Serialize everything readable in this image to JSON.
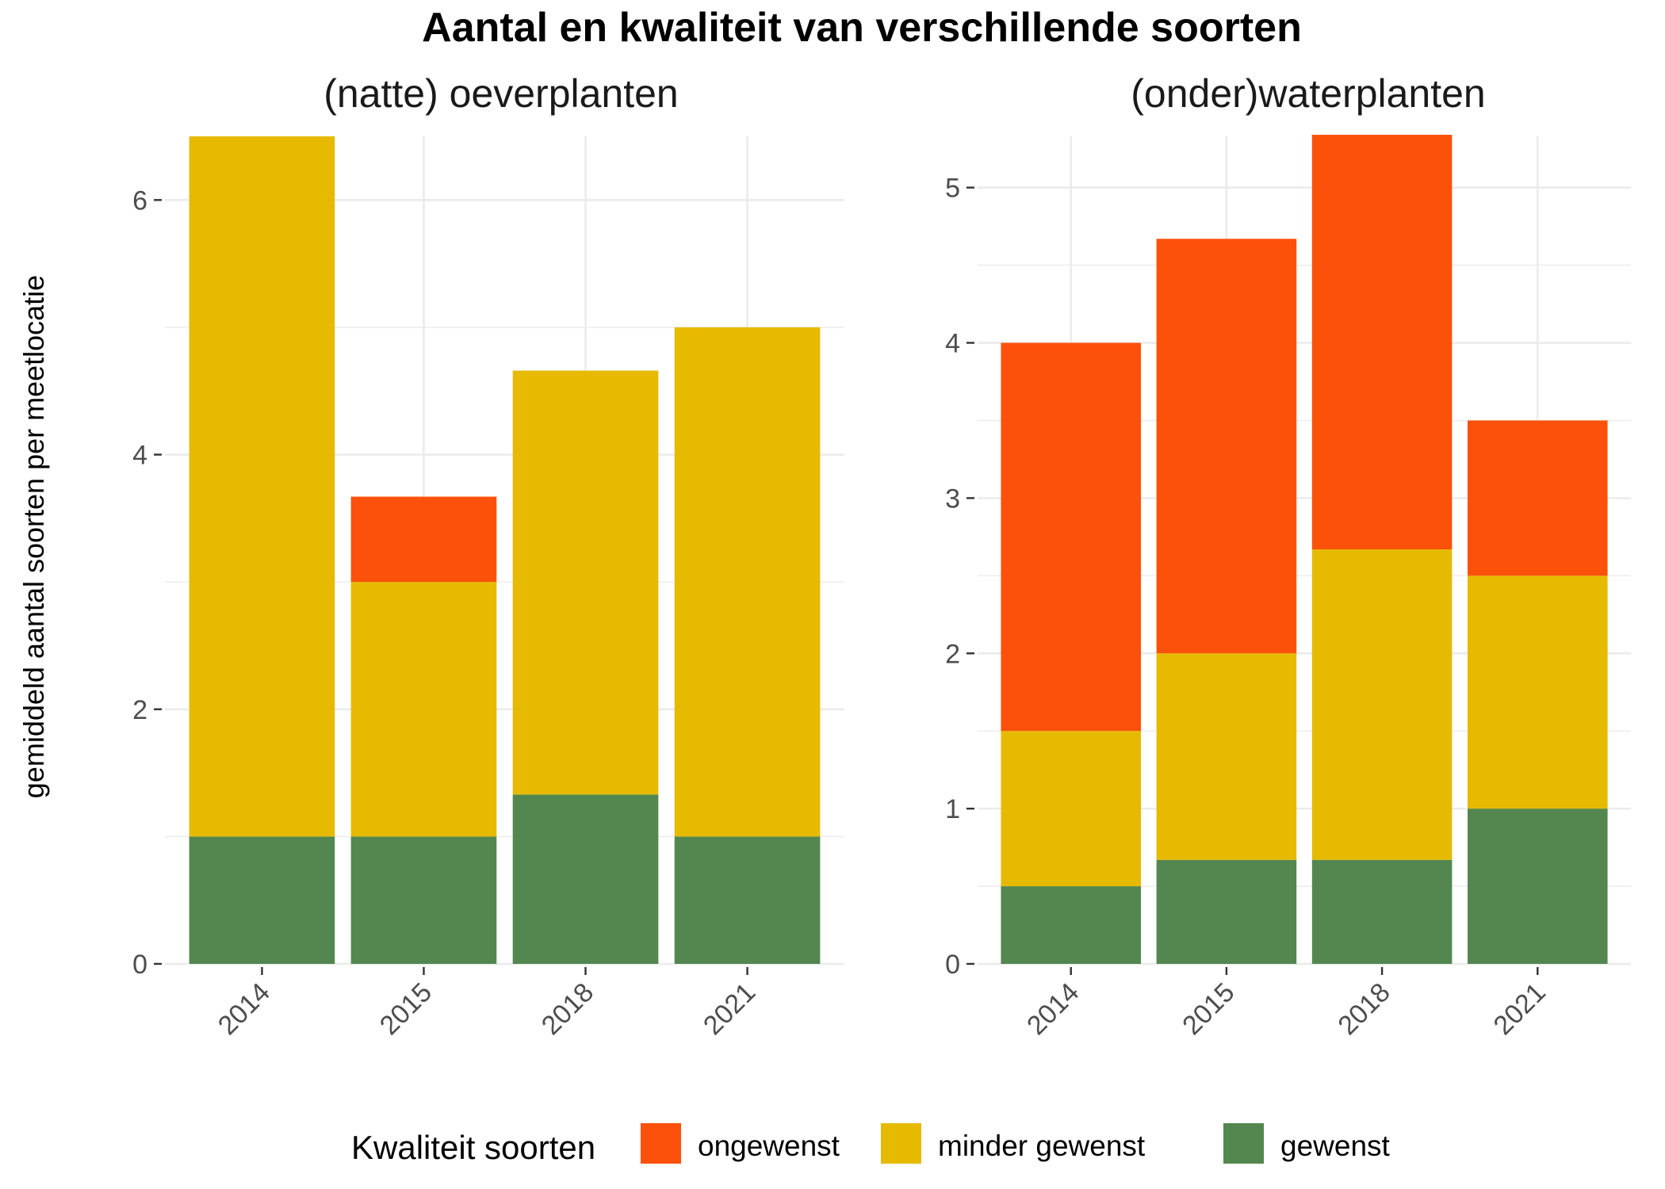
{
  "title": "Aantal en kwaliteit van verschillende soorten",
  "ylabel": "gemiddeld aantal soorten per meetlocatie",
  "legend": {
    "title": "Kwaliteit soorten",
    "items": [
      {
        "label": "ongewenst",
        "color": "#FC510A"
      },
      {
        "label": "minder gewenst",
        "color": "#E6BA00"
      },
      {
        "label": "gewenst",
        "color": "#53874F"
      }
    ]
  },
  "chart_data": [
    {
      "type": "bar",
      "stacked": true,
      "title": "(natte) oeverplanten",
      "categories": [
        "2014",
        "2015",
        "2018",
        "2021"
      ],
      "ylim": [
        0,
        6.5
      ],
      "yticks": [
        0,
        2,
        4,
        6
      ],
      "series": [
        {
          "name": "gewenst",
          "color": "#53874F",
          "values": [
            1,
            1,
            1.33,
            1
          ]
        },
        {
          "name": "minder gewenst",
          "color": "#E6BA00",
          "values": [
            5.5,
            2,
            3.33,
            4
          ]
        },
        {
          "name": "ongewenst",
          "color": "#FC510A",
          "values": [
            0,
            0.67,
            0,
            0
          ]
        }
      ]
    },
    {
      "type": "bar",
      "stacked": true,
      "title": "(onder)waterplanten",
      "categories": [
        "2014",
        "2015",
        "2018",
        "2021"
      ],
      "ylim": [
        0,
        5.33
      ],
      "yticks": [
        0,
        1,
        2,
        3,
        4,
        5
      ],
      "series": [
        {
          "name": "gewenst",
          "color": "#53874F",
          "values": [
            0.5,
            0.67,
            0.67,
            1
          ]
        },
        {
          "name": "minder gewenst",
          "color": "#E6BA00",
          "values": [
            1,
            1.33,
            2,
            1.5
          ]
        },
        {
          "name": "ongewenst",
          "color": "#FC510A",
          "values": [
            2.5,
            2.67,
            2.67,
            1
          ]
        }
      ]
    }
  ]
}
